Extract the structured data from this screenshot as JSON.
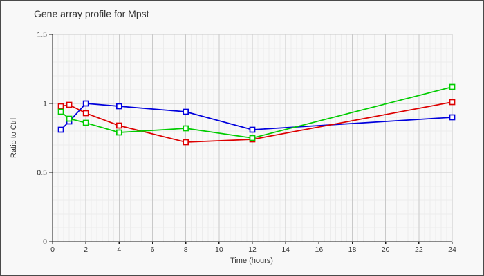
{
  "window": {
    "background": "#f8f8f8",
    "border_color": "#4a4a4a"
  },
  "chart_data": {
    "type": "line",
    "title": "Gene array profile for Mpst",
    "xlabel": "Time (hours)",
    "ylabel": "Ratio to Ctrl",
    "x": [
      0.5,
      1,
      2,
      4,
      8,
      12,
      24
    ],
    "series": [
      {
        "name": "blue-series",
        "color": "#0000dd",
        "values": [
          0.81,
          0.87,
          1.0,
          0.98,
          0.94,
          0.81,
          0.9
        ]
      },
      {
        "name": "red-series",
        "color": "#dd0000",
        "values": [
          0.98,
          0.99,
          0.93,
          0.84,
          0.72,
          0.74,
          1.01
        ]
      },
      {
        "name": "green-series",
        "color": "#00cc00",
        "values": [
          0.94,
          0.89,
          0.86,
          0.79,
          0.82,
          0.75,
          1.12
        ]
      }
    ],
    "marker": "open-square",
    "xlim": [
      0,
      24
    ],
    "ylim": [
      0,
      1.5
    ],
    "x_ticks": [
      0,
      2,
      4,
      6,
      8,
      10,
      12,
      14,
      16,
      18,
      20,
      22,
      24
    ],
    "x_tick_labels": [
      "0",
      "2",
      "4",
      "6",
      "8",
      "10",
      "12",
      "14",
      "16",
      "18",
      "20",
      "22",
      "24"
    ],
    "y_ticks": [
      0,
      0.5,
      1,
      1.5
    ],
    "y_tick_labels": [
      "0",
      "0.5",
      "1",
      "1.5"
    ],
    "x_minor_step": 0.33333,
    "y_minor_step": 0.1,
    "grid": {
      "on": true,
      "minor_color": "#ececec",
      "major_color": "#c9c9c9"
    },
    "axis_color": "#1a1a1a",
    "tick_label_color": "#333333",
    "legend": "none"
  }
}
